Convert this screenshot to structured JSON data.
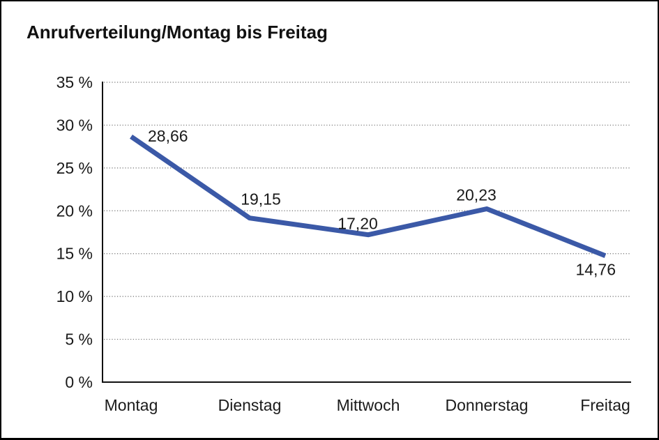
{
  "frame": {
    "background": "#ffffff",
    "border_color": "#000000"
  },
  "chart_data": {
    "type": "line",
    "title": "Anrufverteilung/Montag bis Freitag",
    "categories": [
      "Montag",
      "Dienstag",
      "Mittwoch",
      "Donnerstag",
      "Freitag"
    ],
    "series": [
      {
        "name": "Anrufverteilung",
        "values": [
          28.66,
          19.15,
          17.2,
          20.23,
          14.76
        ],
        "labels": [
          "28,66",
          "19,15",
          "17,20",
          "20,23",
          "14,76"
        ],
        "color": "#3B59A7"
      }
    ],
    "xlabel": "",
    "ylabel": "",
    "ylim": [
      0,
      35
    ],
    "y_tick_step": 5,
    "y_tick_labels": [
      "0 %",
      "5 %",
      "10 %",
      "15 %",
      "20 %",
      "25 %",
      "30 %",
      "35 %"
    ],
    "grid": "horizontal-dotted",
    "grid_color": "#707070",
    "axis_color": "#111111",
    "text_color": "#1a1a1a",
    "legend": "none"
  }
}
